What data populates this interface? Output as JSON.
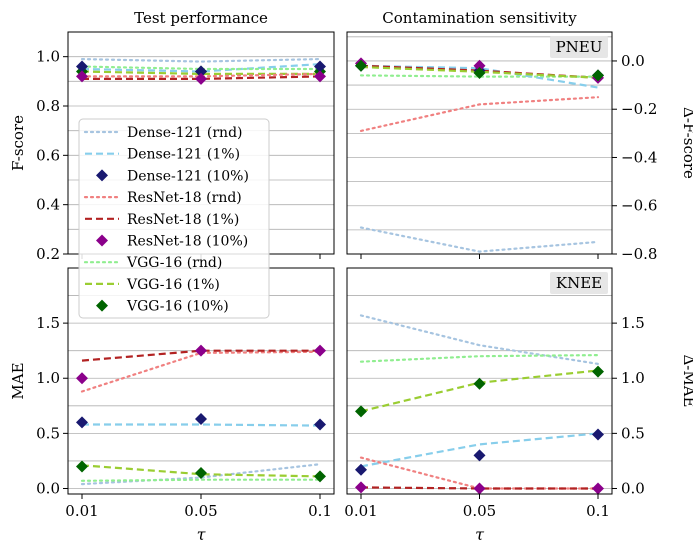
{
  "colors": {
    "dense_rnd": "#a6c4e0",
    "dense_1": "#87ceeb",
    "dense_10": "#191970",
    "resnet_rnd": "#f08080",
    "resnet_1": "#b22222",
    "resnet_10": "#8b008b",
    "vgg_rnd": "#90ee90",
    "vgg_1": "#9acd32",
    "vgg_10": "#006400",
    "grid": "#b0b0b0",
    "badge": "#e6e6e6"
  },
  "legend": [
    {
      "label": "Dense-121 (rnd)",
      "key": "dense_rnd",
      "style": "dotted"
    },
    {
      "label": "Dense-121 (1%)",
      "key": "dense_1",
      "style": "dashed"
    },
    {
      "label": "Dense-121 (10%)",
      "key": "dense_10",
      "style": "marker"
    },
    {
      "label": "ResNet-18 (rnd)",
      "key": "resnet_rnd",
      "style": "dotted"
    },
    {
      "label": "ResNet-18 (1%)",
      "key": "resnet_1",
      "style": "dashed"
    },
    {
      "label": "ResNet-18 (10%)",
      "key": "resnet_10",
      "style": "marker"
    },
    {
      "label": "VGG-16 (rnd)",
      "key": "vgg_rnd",
      "style": "dotted"
    },
    {
      "label": "VGG-16 (1%)",
      "key": "vgg_1",
      "style": "dashed"
    },
    {
      "label": "VGG-16 (10%)",
      "key": "vgg_10",
      "style": "marker"
    }
  ],
  "chart_data": [
    {
      "id": "tl",
      "type": "line",
      "title": "Test performance",
      "ylabel": "F-score",
      "ylim": [
        0.2,
        1.1
      ],
      "yticks": [
        0.2,
        0.4,
        0.6,
        0.8,
        1.0
      ],
      "ytick_labels": [
        "0.2",
        "0.4",
        "0.6",
        "0.8",
        "1.0"
      ],
      "y_side": "left",
      "badge": "",
      "x": [
        0.01,
        0.05,
        0.1
      ],
      "series": [
        {
          "name": "Dense-121 (rnd)",
          "key": "dense_rnd",
          "style": "dotted",
          "values": [
            0.99,
            0.98,
            0.99
          ]
        },
        {
          "name": "Dense-121 (1%)",
          "key": "dense_1",
          "style": "dashed",
          "values": [
            0.95,
            0.94,
            0.97
          ]
        },
        {
          "name": "VGG-16 (rnd)",
          "key": "vgg_rnd",
          "style": "dotted",
          "values": [
            0.96,
            0.95,
            0.95
          ]
        },
        {
          "name": "VGG-16 (1%)",
          "key": "vgg_1",
          "style": "dashed",
          "values": [
            0.94,
            0.93,
            0.93
          ]
        },
        {
          "name": "ResNet-18 (rnd)",
          "key": "resnet_rnd",
          "style": "dotted",
          "values": [
            0.92,
            0.92,
            0.93
          ]
        },
        {
          "name": "ResNet-18 (1%)",
          "key": "resnet_1",
          "style": "dashed",
          "values": [
            0.91,
            0.91,
            0.92
          ]
        },
        {
          "name": "VGG-16 (10%)",
          "key": "vgg_10",
          "style": "marker",
          "values": [
            0.94,
            0.94,
            0.94
          ]
        },
        {
          "name": "Dense-121 (10%)",
          "key": "dense_10",
          "style": "marker",
          "values": [
            0.96,
            0.94,
            0.96
          ]
        },
        {
          "name": "ResNet-18 (10%)",
          "key": "resnet_10",
          "style": "marker",
          "values": [
            0.92,
            0.91,
            0.92
          ]
        }
      ]
    },
    {
      "id": "tr",
      "type": "line",
      "title": "Contamination sensitivity",
      "ylabel": "Δ-F-score",
      "ylim": [
        -0.8,
        0.12
      ],
      "yticks": [
        -0.8,
        -0.6,
        -0.4,
        -0.2,
        0.0
      ],
      "ytick_labels": [
        "−0.8",
        "−0.6",
        "−0.4",
        "−0.2",
        "0.0"
      ],
      "y_side": "right",
      "badge": "PNEU",
      "x": [
        0.01,
        0.05,
        0.1
      ],
      "series": [
        {
          "name": "Dense-121 (rnd)",
          "key": "dense_rnd",
          "style": "dotted",
          "values": [
            -0.69,
            -0.79,
            -0.75
          ]
        },
        {
          "name": "ResNet-18 (rnd)",
          "key": "resnet_rnd",
          "style": "dotted",
          "values": [
            -0.29,
            -0.18,
            -0.15
          ]
        },
        {
          "name": "VGG-16 (rnd)",
          "key": "vgg_rnd",
          "style": "dotted",
          "values": [
            -0.06,
            -0.065,
            -0.065
          ]
        },
        {
          "name": "Dense-121 (1%)",
          "key": "dense_1",
          "style": "dashed",
          "values": [
            -0.02,
            -0.03,
            -0.11
          ]
        },
        {
          "name": "ResNet-18 (1%)",
          "key": "resnet_1",
          "style": "dashed",
          "values": [
            -0.02,
            -0.04,
            -0.07
          ]
        },
        {
          "name": "VGG-16 (1%)",
          "key": "vgg_1",
          "style": "dashed",
          "values": [
            -0.025,
            -0.045,
            -0.07
          ]
        },
        {
          "name": "Dense-121 (10%)",
          "key": "dense_10",
          "style": "marker",
          "values": [
            -0.02,
            -0.04,
            -0.06
          ]
        },
        {
          "name": "ResNet-18 (10%)",
          "key": "resnet_10",
          "style": "marker",
          "values": [
            -0.01,
            -0.02,
            -0.07
          ]
        },
        {
          "name": "VGG-16 (10%)",
          "key": "vgg_10",
          "style": "marker",
          "values": [
            -0.02,
            -0.05,
            -0.06
          ]
        }
      ]
    },
    {
      "id": "bl",
      "type": "line",
      "title": "",
      "ylabel": "MAE",
      "xlabel": "τ",
      "ylim": [
        -0.05,
        2.0
      ],
      "yticks": [
        0.0,
        0.5,
        1.0,
        1.5
      ],
      "ytick_labels": [
        "0.0",
        "0.5",
        "1.0",
        "1.5"
      ],
      "y_side": "left",
      "badge": "",
      "x": [
        0.01,
        0.05,
        0.1
      ],
      "x_ticks": [
        "0.01",
        "0.05",
        "0.1"
      ],
      "series": [
        {
          "name": "Dense-121 (rnd)",
          "key": "dense_rnd",
          "style": "dotted",
          "values": [
            0.04,
            0.1,
            0.22
          ]
        },
        {
          "name": "VGG-16 (rnd)",
          "key": "vgg_rnd",
          "style": "dotted",
          "values": [
            0.07,
            0.08,
            0.08
          ]
        },
        {
          "name": "VGG-16 (1%)",
          "key": "vgg_1",
          "style": "dashed",
          "values": [
            0.21,
            0.13,
            0.11
          ]
        },
        {
          "name": "Dense-121 (1%)",
          "key": "dense_1",
          "style": "dashed",
          "values": [
            0.58,
            0.58,
            0.57
          ]
        },
        {
          "name": "ResNet-18 (rnd)",
          "key": "resnet_rnd",
          "style": "dotted",
          "values": [
            0.88,
            1.23,
            1.24
          ]
        },
        {
          "name": "ResNet-18 (1%)",
          "key": "resnet_1",
          "style": "dashed",
          "values": [
            1.16,
            1.25,
            1.25
          ]
        },
        {
          "name": "Dense-121 (10%)",
          "key": "dense_10",
          "style": "marker",
          "values": [
            0.6,
            0.63,
            0.58
          ]
        },
        {
          "name": "ResNet-18 (10%)",
          "key": "resnet_10",
          "style": "marker",
          "values": [
            1.0,
            1.25,
            1.25
          ]
        },
        {
          "name": "VGG-16 (10%)",
          "key": "vgg_10",
          "style": "marker",
          "values": [
            0.2,
            0.14,
            0.11
          ]
        }
      ]
    },
    {
      "id": "br",
      "type": "line",
      "title": "",
      "ylabel": "Δ-MAE",
      "xlabel": "τ",
      "ylim": [
        -0.05,
        2.0
      ],
      "yticks": [
        0.0,
        0.5,
        1.0,
        1.5
      ],
      "ytick_labels": [
        "0.0",
        "0.5",
        "1.0",
        "1.5"
      ],
      "y_side": "right",
      "badge": "KNEE",
      "x": [
        0.01,
        0.05,
        0.1
      ],
      "x_ticks": [
        "0.01",
        "0.05",
        "0.1"
      ],
      "series": [
        {
          "name": "Dense-121 (rnd)",
          "key": "dense_rnd",
          "style": "dotted",
          "values": [
            1.57,
            1.3,
            1.13
          ]
        },
        {
          "name": "VGG-16 (rnd)",
          "key": "vgg_rnd",
          "style": "dotted",
          "values": [
            1.15,
            1.2,
            1.21
          ]
        },
        {
          "name": "VGG-16 (1%)",
          "key": "vgg_1",
          "style": "dashed",
          "values": [
            0.7,
            0.96,
            1.07
          ]
        },
        {
          "name": "Dense-121 (1%)",
          "key": "dense_1",
          "style": "dashed",
          "values": [
            0.2,
            0.4,
            0.5
          ]
        },
        {
          "name": "ResNet-18 (rnd)",
          "key": "resnet_rnd",
          "style": "dotted",
          "values": [
            0.28,
            0.0,
            0.0
          ]
        },
        {
          "name": "ResNet-18 (1%)",
          "key": "resnet_1",
          "style": "dashed",
          "values": [
            0.01,
            0.0,
            0.0
          ]
        },
        {
          "name": "VGG-16 (10%)",
          "key": "vgg_10",
          "style": "marker",
          "values": [
            0.7,
            0.95,
            1.06
          ]
        },
        {
          "name": "Dense-121 (10%)",
          "key": "dense_10",
          "style": "marker",
          "values": [
            0.17,
            0.3,
            0.49
          ]
        },
        {
          "name": "ResNet-18 (10%)",
          "key": "resnet_10",
          "style": "marker",
          "values": [
            0.01,
            0.0,
            0.0
          ]
        }
      ]
    }
  ]
}
